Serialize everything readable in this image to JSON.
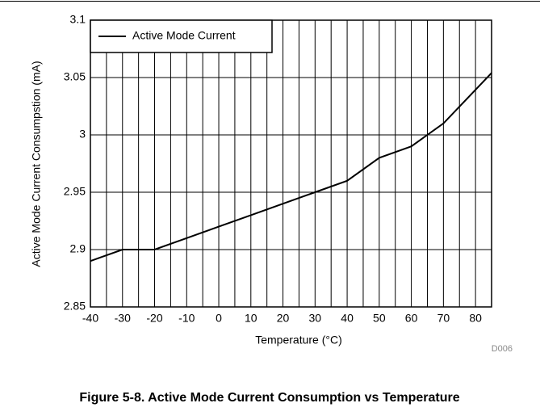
{
  "chart_data": {
    "type": "line",
    "caption": "Figure 5-8. Active Mode Current Consumption vs Temperature",
    "code": "D006",
    "x_label": "Temperature (°C)",
    "y_label": "Active Mode Current Consumpstion (mA)",
    "x": [
      -40,
      -30,
      -20,
      -10,
      0,
      10,
      20,
      30,
      40,
      50,
      60,
      70,
      85
    ],
    "series": [
      {
        "name": "Active Mode Current",
        "color": "#000000",
        "values": [
          2.89,
          2.9,
          2.9,
          2.91,
          2.92,
          2.93,
          2.94,
          2.95,
          2.96,
          2.98,
          2.99,
          3.01,
          3.054
        ]
      }
    ],
    "xlim": [
      -40,
      85
    ],
    "xticks": [
      -40,
      -30,
      -20,
      -10,
      0,
      10,
      20,
      30,
      40,
      50,
      60,
      70,
      80
    ],
    "xgrid": [
      -35,
      -25,
      -15,
      -5,
      5,
      15,
      25,
      35,
      45,
      55,
      65,
      75
    ],
    "ylim": [
      2.85,
      3.1
    ],
    "yticks": [
      2.85,
      2.9,
      2.95,
      3,
      3.05,
      3.1
    ],
    "grid": true,
    "legend": "upper left"
  }
}
